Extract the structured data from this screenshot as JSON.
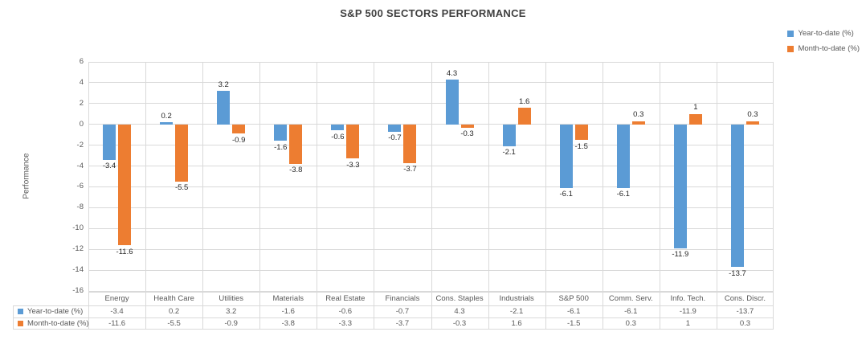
{
  "chart_data": {
    "type": "bar",
    "title": "S&P 500 SECTORS PERFORMANCE",
    "ylabel": "Performance",
    "xlabel": "",
    "categories": [
      "Energy",
      "Health Care",
      "Utilities",
      "Materials",
      "Real Estate",
      "Financials",
      "Cons. Staples",
      "Industrials",
      "S&P 500",
      "Comm. Serv.",
      "Info. Tech.",
      "Cons. Discr."
    ],
    "series": [
      {
        "name": "Year-to-date (%)",
        "color": "#5B9BD5",
        "values": [
          -3.4,
          0.2,
          3.2,
          -1.6,
          -0.6,
          -0.7,
          4.3,
          -2.1,
          -6.1,
          -6.1,
          -11.9,
          -13.7
        ]
      },
      {
        "name": "Month-to-date (%)",
        "color": "#ED7D31",
        "values": [
          -11.6,
          -5.5,
          -0.9,
          -3.8,
          -3.3,
          -3.7,
          -0.3,
          1.6,
          -1.5,
          0.3,
          1,
          0.3
        ]
      }
    ],
    "ylim": [
      -16,
      6
    ],
    "yticks": [
      6,
      4,
      2,
      0,
      -2,
      -4,
      -6,
      -8,
      -10,
      -12,
      -14,
      -16
    ],
    "grid": true,
    "legend_position": "top-right",
    "data_labels": true,
    "data_table_shown": true
  },
  "colors": {
    "ytd": "#5B9BD5",
    "mtd": "#ED7D31",
    "gridline": "#D9D9D9",
    "axis_text": "#595959",
    "data_label_text": "#262626",
    "title_text": "#404040"
  }
}
